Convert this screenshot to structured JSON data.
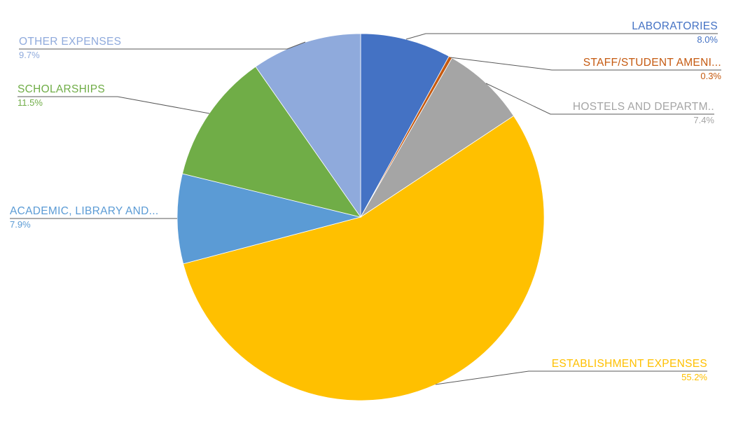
{
  "chart_data": {
    "type": "pie",
    "title": "",
    "unit": "%",
    "total": 100.0,
    "direction": "clockwise",
    "start_angle_deg": 0,
    "legend": "none",
    "labels_style": "outside category name above leader line, percentage below",
    "series": [
      {
        "label": "LABORATORIES",
        "value": 8.0,
        "pct_label": "8.0%",
        "color": "#4472C4"
      },
      {
        "label": "STAFF/STUDENT AMENI...",
        "value": 0.3,
        "pct_label": "0.3%",
        "color": "#C55A11"
      },
      {
        "label": "HOSTELS AND DEPARTM..",
        "value": 7.4,
        "pct_label": "7.4%",
        "color": "#A5A5A5"
      },
      {
        "label": "ESTABLISHMENT EXPENSES",
        "value": 55.2,
        "pct_label": "55.2%",
        "color": "#FFC000"
      },
      {
        "label": "ACADEMIC, LIBRARY AND...",
        "value": 7.9,
        "pct_label": "7.9%",
        "color": "#5B9BD5"
      },
      {
        "label": "SCHOLARSHIPS",
        "value": 11.5,
        "pct_label": "11.5%",
        "color": "#70AD47"
      },
      {
        "label": "OTHER EXPENSES",
        "value": 9.7,
        "pct_label": "9.7%",
        "color": "#8FAADC"
      }
    ]
  },
  "colors": {
    "background": "#FFFFFF",
    "leader_line": "#595959"
  }
}
